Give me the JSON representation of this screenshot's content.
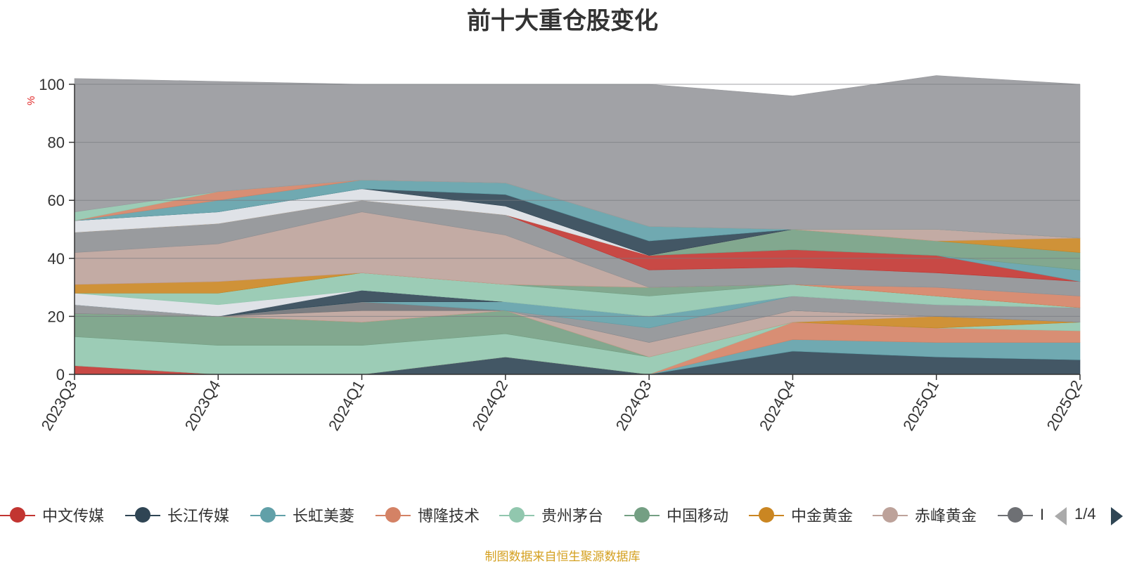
{
  "title": "前十大重仓股变化",
  "y_unit": "%",
  "source": "制图数据来自恒生聚源数据库",
  "pager": {
    "text": "1/4"
  },
  "legend": [
    {
      "name": "中文传媒",
      "color": "#c23531"
    },
    {
      "name": "长江传媒",
      "color": "#2f4554"
    },
    {
      "name": "长虹美菱",
      "color": "#61a0a8"
    },
    {
      "name": "博隆技术",
      "color": "#d48265"
    },
    {
      "name": "贵州茅台",
      "color": "#91c7ae"
    },
    {
      "name": "中国移动",
      "color": "#749f83"
    },
    {
      "name": "中金黄金",
      "color": "#ca8622"
    },
    {
      "name": "赤峰黄金",
      "color": "#bda29a"
    },
    {
      "name": "I",
      "color": "#6e7074"
    }
  ],
  "chart_data": {
    "type": "area",
    "stacked": true,
    "title": "前十大重仓股变化",
    "ylabel": "%",
    "ylim": [
      0,
      100
    ],
    "yticks": [
      0,
      20,
      40,
      60,
      80,
      100
    ],
    "categories": [
      "2023Q3",
      "2023Q4",
      "2024Q1",
      "2024Q2",
      "2024Q3",
      "2024Q4",
      "2025Q1",
      "2025Q2"
    ],
    "layers": [
      {
        "color": "#c23531",
        "values": [
          3,
          0,
          0,
          0,
          0,
          0,
          0,
          0
        ]
      },
      {
        "color": "#2f4554",
        "values": [
          0,
          0,
          0,
          6,
          0,
          8,
          6,
          5
        ]
      },
      {
        "color": "#61a0a8",
        "values": [
          0,
          0,
          0,
          0,
          0,
          4,
          5,
          6
        ]
      },
      {
        "color": "#d48265",
        "values": [
          0,
          0,
          0,
          0,
          0,
          6,
          5,
          4
        ]
      },
      {
        "color": "#91c7ae",
        "values": [
          10,
          10,
          10,
          8,
          6,
          0,
          0,
          3
        ]
      },
      {
        "color": "#749f83",
        "values": [
          8,
          10,
          8,
          8,
          0,
          0,
          0,
          0
        ]
      },
      {
        "color": "#ca8622",
        "values": [
          0,
          0,
          0,
          0,
          0,
          0,
          4,
          0
        ]
      },
      {
        "color": "#bda29a",
        "values": [
          0,
          0,
          4,
          0,
          5,
          4,
          0,
          0
        ]
      },
      {
        "color": "#6e7074",
        "values": [
          0,
          0,
          3,
          0,
          0,
          0,
          0,
          0
        ]
      },
      {
        "color": "#8e9094",
        "values": [
          3,
          0,
          0,
          0,
          5,
          5,
          4,
          5
        ]
      },
      {
        "color": "#61a0a8",
        "values": [
          0,
          0,
          0,
          3,
          4,
          0,
          0,
          0
        ]
      },
      {
        "color": "#2f4554",
        "values": [
          0,
          0,
          4,
          0,
          0,
          0,
          0,
          0
        ]
      },
      {
        "color": "#dcdfe4",
        "values": [
          4,
          4,
          0,
          0,
          0,
          0,
          0,
          0
        ]
      },
      {
        "color": "#91c7ae",
        "values": [
          0,
          4,
          6,
          6,
          7,
          4,
          3,
          0
        ]
      },
      {
        "color": "#749f83",
        "values": [
          0,
          0,
          0,
          0,
          3,
          0,
          0,
          0
        ]
      },
      {
        "color": "#ca8622",
        "values": [
          3,
          4,
          0,
          0,
          0,
          0,
          0,
          0
        ]
      },
      {
        "color": "#d48265",
        "values": [
          0,
          0,
          0,
          0,
          0,
          0,
          3,
          4
        ]
      },
      {
        "color": "#bda29a",
        "values": [
          11,
          13,
          21,
          17,
          0,
          0,
          0,
          0
        ]
      },
      {
        "color": "#8e9094",
        "values": [
          7,
          7,
          4,
          7,
          6,
          6,
          5,
          5
        ]
      },
      {
        "color": "#c23531",
        "values": [
          0,
          0,
          0,
          0,
          5,
          6,
          6,
          0
        ]
      },
      {
        "color": "#61a0a8",
        "values": [
          0,
          0,
          0,
          0,
          0,
          0,
          0,
          4
        ]
      },
      {
        "color": "#749f83",
        "values": [
          0,
          0,
          0,
          0,
          0,
          7,
          5,
          6
        ]
      },
      {
        "color": "#ca8622",
        "values": [
          0,
          0,
          0,
          0,
          0,
          0,
          0,
          5
        ]
      },
      {
        "color": "#bda29a",
        "values": [
          0,
          0,
          0,
          0,
          0,
          0,
          4,
          0
        ]
      },
      {
        "color": "#dcdfe4",
        "values": [
          4,
          4,
          4,
          3,
          0,
          0,
          0,
          0
        ]
      },
      {
        "color": "#2f4554",
        "values": [
          0,
          0,
          0,
          4,
          5,
          0,
          0,
          0
        ]
      },
      {
        "color": "#61a0a8",
        "values": [
          0,
          4,
          3,
          4,
          5,
          0,
          0,
          0
        ]
      },
      {
        "color": "#d48265",
        "values": [
          0,
          3,
          0,
          0,
          0,
          0,
          0,
          0
        ]
      },
      {
        "color": "#91c7ae",
        "values": [
          3,
          0,
          0,
          0,
          0,
          0,
          0,
          0
        ]
      },
      {
        "color": "#97989c",
        "values": [
          46,
          38,
          33,
          34,
          49,
          46,
          53,
          53
        ]
      }
    ]
  }
}
